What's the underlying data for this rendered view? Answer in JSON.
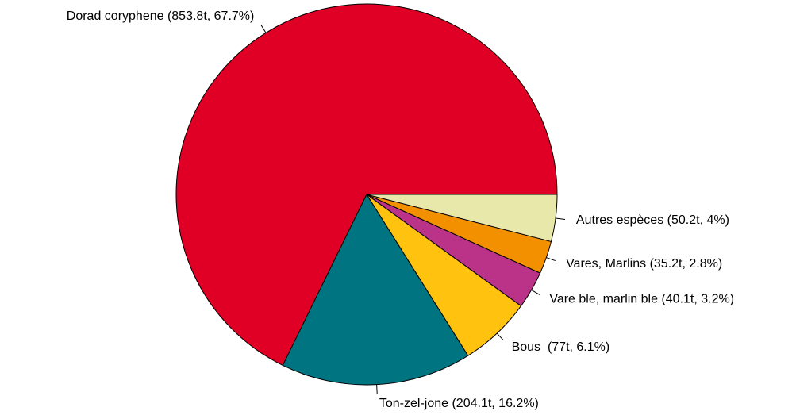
{
  "chart_data": {
    "type": "pie",
    "categories": [
      "Dorad coryphene",
      "Ton-zel-jone",
      "Bous",
      "Vare ble, marlin ble",
      "Vares, Marlins",
      "Autres espèces"
    ],
    "values": [
      853.8,
      204.1,
      77,
      40.1,
      35.2,
      50.2
    ],
    "value_labels": [
      "Dorad coryphene (853.8t, 67.7%)",
      "Ton-zel-jone (204.1t, 16.2%)",
      "Bous  (77t, 6.1%)",
      "Vare ble, marlin ble (40.1t, 3.2%)",
      "Vares, Marlins (35.2t, 2.8%)",
      "Autres espèces (50.2t, 4%)"
    ],
    "colors": [
      "#e00025",
      "#007480",
      "#ffc20e",
      "#bb3388",
      "#f39000",
      "#e8e8aa"
    ]
  }
}
